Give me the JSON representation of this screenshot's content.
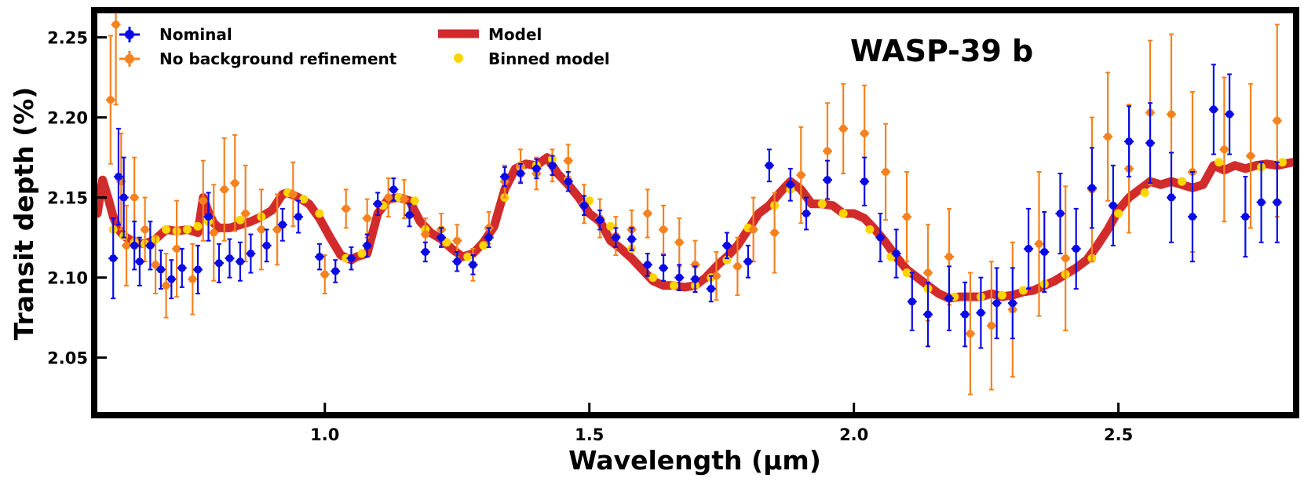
{
  "chart_data": {
    "type": "scatter",
    "title": "WASP-39 b",
    "xlabel": "Wavelength (μm)",
    "ylabel": "Transit depth (%)",
    "xlim": [
      0.57,
      2.83
    ],
    "ylim": [
      2.016,
      2.265
    ],
    "xticks": [
      1.0,
      1.5,
      2.0,
      2.5
    ],
    "xtick_labels": [
      "1.0",
      "1.5",
      "2.0",
      "2.5"
    ],
    "yticks": [
      2.05,
      2.1,
      2.15,
      2.2,
      2.25
    ],
    "ytick_labels": [
      "2.05",
      "2.10",
      "2.15",
      "2.20",
      "2.25"
    ],
    "grid": false,
    "legend_position": "top-left",
    "colors": {
      "nominal": "#0a0ae6",
      "no_background": "#f5821f",
      "model": "#d22b2b",
      "binned_model": "#ffd500"
    },
    "legend": [
      {
        "label": "Nominal",
        "series": "nominal"
      },
      {
        "label": "No background refinement",
        "series": "no_background"
      },
      {
        "label": "Model",
        "series": "model"
      },
      {
        "label": "Binned model",
        "series": "binned_model"
      }
    ],
    "series": [
      {
        "name": "Model",
        "key": "model",
        "kind": "line",
        "x": [
          0.57,
          0.58,
          0.59,
          0.6,
          0.61,
          0.62,
          0.64,
          0.66,
          0.68,
          0.7,
          0.72,
          0.74,
          0.76,
          0.77,
          0.78,
          0.79,
          0.8,
          0.82,
          0.84,
          0.86,
          0.88,
          0.9,
          0.92,
          0.93,
          0.95,
          0.97,
          0.99,
          1.01,
          1.03,
          1.05,
          1.06,
          1.08,
          1.1,
          1.12,
          1.14,
          1.16,
          1.18,
          1.2,
          1.22,
          1.24,
          1.26,
          1.28,
          1.3,
          1.32,
          1.34,
          1.36,
          1.38,
          1.4,
          1.42,
          1.44,
          1.46,
          1.48,
          1.5,
          1.52,
          1.54,
          1.56,
          1.58,
          1.6,
          1.62,
          1.64,
          1.66,
          1.68,
          1.7,
          1.72,
          1.74,
          1.76,
          1.78,
          1.8,
          1.82,
          1.84,
          1.86,
          1.88,
          1.9,
          1.92,
          1.94,
          1.96,
          1.98,
          2.0,
          2.02,
          2.04,
          2.06,
          2.08,
          2.1,
          2.12,
          2.14,
          2.16,
          2.18,
          2.2,
          2.22,
          2.24,
          2.26,
          2.28,
          2.3,
          2.32,
          2.34,
          2.36,
          2.38,
          2.4,
          2.42,
          2.44,
          2.46,
          2.48,
          2.5,
          2.52,
          2.54,
          2.56,
          2.58,
          2.6,
          2.62,
          2.64,
          2.66,
          2.68,
          2.7,
          2.72,
          2.74,
          2.76,
          2.78,
          2.8,
          2.83
        ],
        "y": [
          2.14,
          2.161,
          2.15,
          2.138,
          2.13,
          2.126,
          2.122,
          2.121,
          2.124,
          2.13,
          2.129,
          2.13,
          2.128,
          2.15,
          2.141,
          2.134,
          2.131,
          2.131,
          2.133,
          2.135,
          2.138,
          2.142,
          2.152,
          2.153,
          2.15,
          2.146,
          2.137,
          2.125,
          2.114,
          2.111,
          2.113,
          2.115,
          2.14,
          2.149,
          2.15,
          2.148,
          2.135,
          2.128,
          2.124,
          2.118,
          2.113,
          2.115,
          2.122,
          2.132,
          2.155,
          2.168,
          2.171,
          2.17,
          2.175,
          2.165,
          2.158,
          2.15,
          2.14,
          2.135,
          2.123,
          2.118,
          2.112,
          2.105,
          2.098,
          2.095,
          2.095,
          2.094,
          2.095,
          2.1,
          2.107,
          2.113,
          2.12,
          2.13,
          2.14,
          2.145,
          2.153,
          2.16,
          2.155,
          2.146,
          2.146,
          2.145,
          2.14,
          2.14,
          2.137,
          2.13,
          2.122,
          2.113,
          2.105,
          2.1,
          2.095,
          2.09,
          2.087,
          2.088,
          2.088,
          2.088,
          2.09,
          2.088,
          2.089,
          2.091,
          2.092,
          2.095,
          2.098,
          2.102,
          2.106,
          2.111,
          2.12,
          2.13,
          2.142,
          2.15,
          2.155,
          2.16,
          2.158,
          2.16,
          2.158,
          2.156,
          2.158,
          2.17,
          2.167,
          2.17,
          2.168,
          2.17,
          2.171,
          2.17,
          2.172
        ]
      },
      {
        "name": "Binned model",
        "key": "binned_model",
        "kind": "points",
        "x": [
          0.6,
          0.62,
          0.64,
          0.66,
          0.68,
          0.7,
          0.72,
          0.74,
          0.76,
          0.78,
          0.84,
          0.88,
          0.93,
          0.96,
          0.99,
          1.04,
          1.07,
          1.11,
          1.14,
          1.17,
          1.19,
          1.23,
          1.27,
          1.3,
          1.34,
          1.37,
          1.4,
          1.43,
          1.46,
          1.5,
          1.54,
          1.58,
          1.62,
          1.66,
          1.7,
          1.73,
          1.76,
          1.8,
          1.85,
          1.88,
          1.94,
          1.98,
          2.03,
          2.07,
          2.1,
          2.14,
          2.19,
          2.24,
          2.28,
          2.32,
          2.36,
          2.4,
          2.45,
          2.5,
          2.55,
          2.62,
          2.69,
          2.77,
          2.81
        ],
        "y": [
          2.13,
          2.126,
          2.122,
          2.121,
          2.124,
          2.13,
          2.129,
          2.13,
          2.132,
          2.135,
          2.136,
          2.138,
          2.153,
          2.149,
          2.14,
          2.112,
          2.115,
          2.145,
          2.15,
          2.148,
          2.13,
          2.122,
          2.113,
          2.12,
          2.15,
          2.169,
          2.17,
          2.174,
          2.161,
          2.148,
          2.132,
          2.118,
          2.1,
          2.095,
          2.095,
          2.1,
          2.111,
          2.131,
          2.145,
          2.155,
          2.146,
          2.14,
          2.13,
          2.113,
          2.103,
          2.093,
          2.088,
          2.088,
          2.089,
          2.092,
          2.096,
          2.102,
          2.112,
          2.14,
          2.153,
          2.16,
          2.172,
          2.169,
          2.172
        ]
      },
      {
        "name": "No background refinement",
        "key": "no_background",
        "kind": "errorbar",
        "x": [
          0.595,
          0.605,
          0.615,
          0.625,
          0.64,
          0.66,
          0.68,
          0.7,
          0.72,
          0.75,
          0.77,
          0.79,
          0.81,
          0.83,
          0.85,
          0.88,
          0.91,
          0.94,
          1.0,
          1.04,
          1.08,
          1.12,
          1.15,
          1.19,
          1.22,
          1.25,
          1.28,
          1.31,
          1.34,
          1.37,
          1.4,
          1.43,
          1.46,
          1.49,
          1.52,
          1.55,
          1.58,
          1.61,
          1.64,
          1.67,
          1.7,
          1.74,
          1.78,
          1.81,
          1.85,
          1.9,
          1.95,
          1.98,
          2.02,
          2.06,
          2.1,
          2.14,
          2.18,
          2.22,
          2.26,
          2.3,
          2.35,
          2.4,
          2.45,
          2.48,
          2.52,
          2.56,
          2.6,
          2.64,
          2.7,
          2.75,
          2.8
        ],
        "y": [
          2.211,
          2.258,
          2.16,
          2.12,
          2.15,
          2.13,
          2.108,
          2.095,
          2.118,
          2.099,
          2.148,
          2.128,
          2.155,
          2.159,
          2.14,
          2.13,
          2.13,
          2.152,
          2.102,
          2.143,
          2.137,
          2.15,
          2.149,
          2.127,
          2.13,
          2.123,
          2.108,
          2.131,
          2.16,
          2.17,
          2.165,
          2.17,
          2.173,
          2.146,
          2.137,
          2.126,
          2.13,
          2.14,
          2.13,
          2.122,
          2.108,
          2.101,
          2.107,
          2.13,
          2.128,
          2.164,
          2.179,
          2.193,
          2.19,
          2.166,
          2.138,
          2.103,
          2.113,
          2.065,
          2.07,
          2.08,
          2.121,
          2.112,
          2.155,
          2.188,
          2.168,
          2.203,
          2.202,
          2.166,
          2.18,
          2.176,
          2.198
        ],
        "err": [
          0.04,
          0.05,
          0.03,
          0.025,
          0.025,
          0.02,
          0.018,
          0.02,
          0.03,
          0.022,
          0.025,
          0.03,
          0.032,
          0.03,
          0.03,
          0.025,
          0.022,
          0.02,
          0.012,
          0.012,
          0.012,
          0.012,
          0.012,
          0.01,
          0.01,
          0.01,
          0.01,
          0.01,
          0.01,
          0.01,
          0.01,
          0.01,
          0.01,
          0.012,
          0.012,
          0.012,
          0.012,
          0.015,
          0.015,
          0.015,
          0.015,
          0.015,
          0.018,
          0.02,
          0.025,
          0.03,
          0.03,
          0.028,
          0.03,
          0.03,
          0.028,
          0.03,
          0.03,
          0.038,
          0.04,
          0.042,
          0.045,
          0.045,
          0.045,
          0.04,
          0.04,
          0.045,
          0.05,
          0.05,
          0.045,
          0.045,
          0.06
        ]
      },
      {
        "name": "Nominal",
        "key": "nominal",
        "kind": "errorbar",
        "x": [
          0.6,
          0.61,
          0.62,
          0.64,
          0.65,
          0.67,
          0.69,
          0.71,
          0.73,
          0.76,
          0.78,
          0.8,
          0.82,
          0.84,
          0.86,
          0.89,
          0.92,
          0.95,
          0.99,
          1.02,
          1.05,
          1.08,
          1.1,
          1.13,
          1.16,
          1.19,
          1.22,
          1.25,
          1.28,
          1.31,
          1.34,
          1.37,
          1.4,
          1.43,
          1.46,
          1.49,
          1.52,
          1.55,
          1.58,
          1.61,
          1.64,
          1.67,
          1.7,
          1.73,
          1.76,
          1.8,
          1.84,
          1.88,
          1.91,
          1.95,
          2.02,
          2.05,
          2.08,
          2.11,
          2.14,
          2.18,
          2.21,
          2.24,
          2.27,
          2.3,
          2.33,
          2.36,
          2.39,
          2.42,
          2.45,
          2.49,
          2.52,
          2.56,
          2.6,
          2.64,
          2.68,
          2.71,
          2.74,
          2.77,
          2.8
        ],
        "y": [
          2.112,
          2.163,
          2.15,
          2.12,
          2.11,
          2.12,
          2.105,
          2.099,
          2.106,
          2.105,
          2.138,
          2.109,
          2.112,
          2.11,
          2.115,
          2.12,
          2.133,
          2.138,
          2.113,
          2.104,
          2.112,
          2.12,
          2.146,
          2.155,
          2.139,
          2.116,
          2.125,
          2.11,
          2.108,
          2.125,
          2.163,
          2.165,
          2.168,
          2.17,
          2.16,
          2.145,
          2.136,
          2.125,
          2.124,
          2.108,
          2.106,
          2.1,
          2.099,
          2.093,
          2.12,
          2.11,
          2.17,
          2.158,
          2.14,
          2.161,
          2.16,
          2.125,
          2.115,
          2.085,
          2.077,
          2.087,
          2.077,
          2.078,
          2.084,
          2.084,
          2.118,
          2.116,
          2.14,
          2.118,
          2.156,
          2.145,
          2.185,
          2.184,
          2.15,
          2.138,
          2.205,
          2.202,
          2.138,
          2.147,
          2.147
        ],
        "err": [
          0.025,
          0.03,
          0.025,
          0.015,
          0.015,
          0.015,
          0.012,
          0.012,
          0.012,
          0.015,
          0.015,
          0.012,
          0.012,
          0.012,
          0.012,
          0.01,
          0.01,
          0.01,
          0.008,
          0.007,
          0.007,
          0.007,
          0.007,
          0.007,
          0.007,
          0.006,
          0.006,
          0.006,
          0.006,
          0.006,
          0.006,
          0.006,
          0.006,
          0.006,
          0.006,
          0.006,
          0.006,
          0.006,
          0.007,
          0.007,
          0.008,
          0.008,
          0.008,
          0.008,
          0.008,
          0.01,
          0.01,
          0.01,
          0.01,
          0.012,
          0.015,
          0.015,
          0.015,
          0.018,
          0.02,
          0.02,
          0.02,
          0.022,
          0.022,
          0.022,
          0.025,
          0.025,
          0.025,
          0.025,
          0.025,
          0.025,
          0.022,
          0.025,
          0.028,
          0.028,
          0.028,
          0.025,
          0.025,
          0.025,
          0.025
        ]
      }
    ]
  }
}
